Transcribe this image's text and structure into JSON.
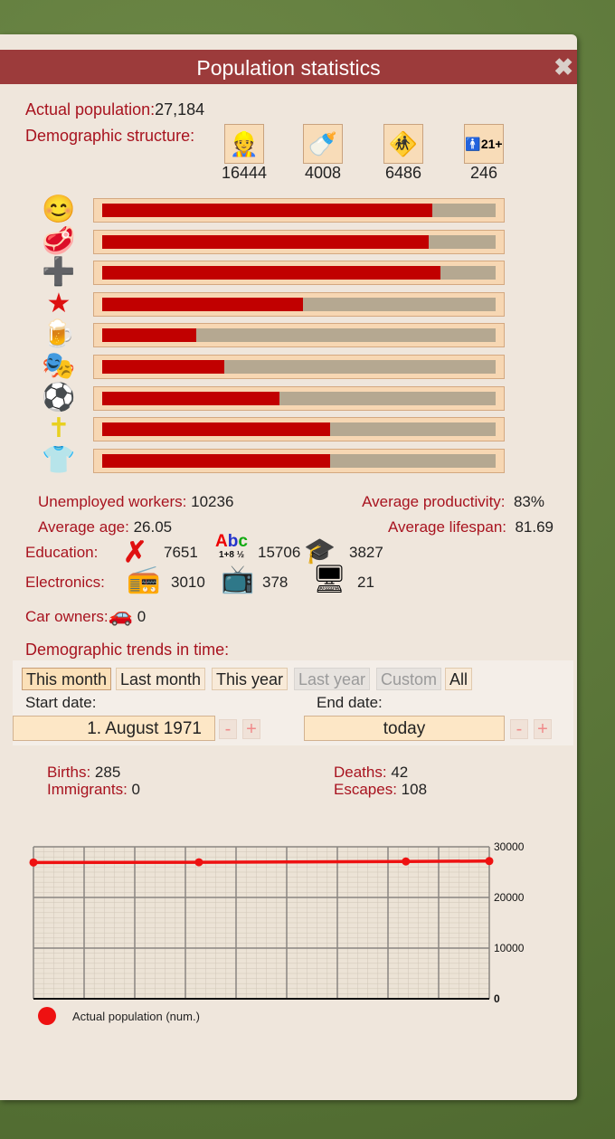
{
  "title": "Population statistics",
  "actual_population": {
    "label": "Actual population:",
    "value": "27,184"
  },
  "demographic": {
    "label": "Demographic structure:",
    "groups": [
      {
        "icon": "workers-icon",
        "value": "16444"
      },
      {
        "icon": "baby-stroller-icon",
        "value": "4008"
      },
      {
        "icon": "children-icon",
        "value": "6486"
      },
      {
        "icon": "adult-21plus-icon",
        "value": "246"
      }
    ]
  },
  "satisfaction_bars": [
    {
      "icon": "smiley-icon",
      "fraction": 0.84
    },
    {
      "icon": "meat-icon",
      "fraction": 0.83
    },
    {
      "icon": "health-cross-icon",
      "fraction": 0.86
    },
    {
      "icon": "red-star-icon",
      "fraction": 0.51
    },
    {
      "icon": "beer-bottle-icon",
      "fraction": 0.24
    },
    {
      "icon": "theater-masks-icon",
      "fraction": 0.31
    },
    {
      "icon": "sport-balls-icon",
      "fraction": 0.45
    },
    {
      "icon": "cross-icon",
      "fraction": 0.58
    },
    {
      "icon": "clothes-icon",
      "fraction": 0.58
    }
  ],
  "stats": {
    "unemployed_label": "Unemployed workers:",
    "unemployed": "10236",
    "productivity_label": "Average productivity:",
    "productivity": "83%",
    "age_label": "Average age:",
    "age": "26.05",
    "lifespan_label": "Average lifespan:",
    "lifespan": "81.69"
  },
  "education": {
    "label": "Education:",
    "none": "7651",
    "basic": "15706",
    "university": "3827",
    "basic_icon_text": "Abc",
    "basic_icon_sub": "1+8 ½"
  },
  "electronics": {
    "label": "Electronics:",
    "radio": "3010",
    "tv": "378",
    "computer": "21"
  },
  "cars": {
    "label": "Car owners:",
    "value": "0"
  },
  "trends": {
    "label": "Demographic trends in time:",
    "buttons": [
      {
        "label": "This month",
        "state": "selected"
      },
      {
        "label": "Last month",
        "state": "enabled"
      },
      {
        "label": "This year",
        "state": "enabled"
      },
      {
        "label": "Last year",
        "state": "disabled"
      },
      {
        "label": "Custom",
        "state": "disabled"
      },
      {
        "label": "All",
        "state": "enabled"
      }
    ],
    "start_label": "Start date:",
    "start_value": "1. August 1971",
    "end_label": "End date:",
    "end_value": "today",
    "minus": "-",
    "plus": "+"
  },
  "period": {
    "births_label": "Births:",
    "births": "285",
    "immigrants_label": "Immigrants:",
    "immigrants": "0",
    "deaths_label": "Deaths:",
    "deaths": "42",
    "escapes_label": "Escapes:",
    "escapes": "108"
  },
  "chart_data": {
    "type": "line",
    "series": [
      {
        "name": "Actual population (num.)",
        "color": "#ee1111",
        "values": [
          26900,
          26950,
          27100,
          27184
        ]
      }
    ],
    "ylim": [
      0,
      30000
    ],
    "yticks": [
      "30000",
      "20000",
      "10000",
      "0"
    ],
    "y_axis": "right",
    "grid": true,
    "legend": "bottom-left"
  }
}
